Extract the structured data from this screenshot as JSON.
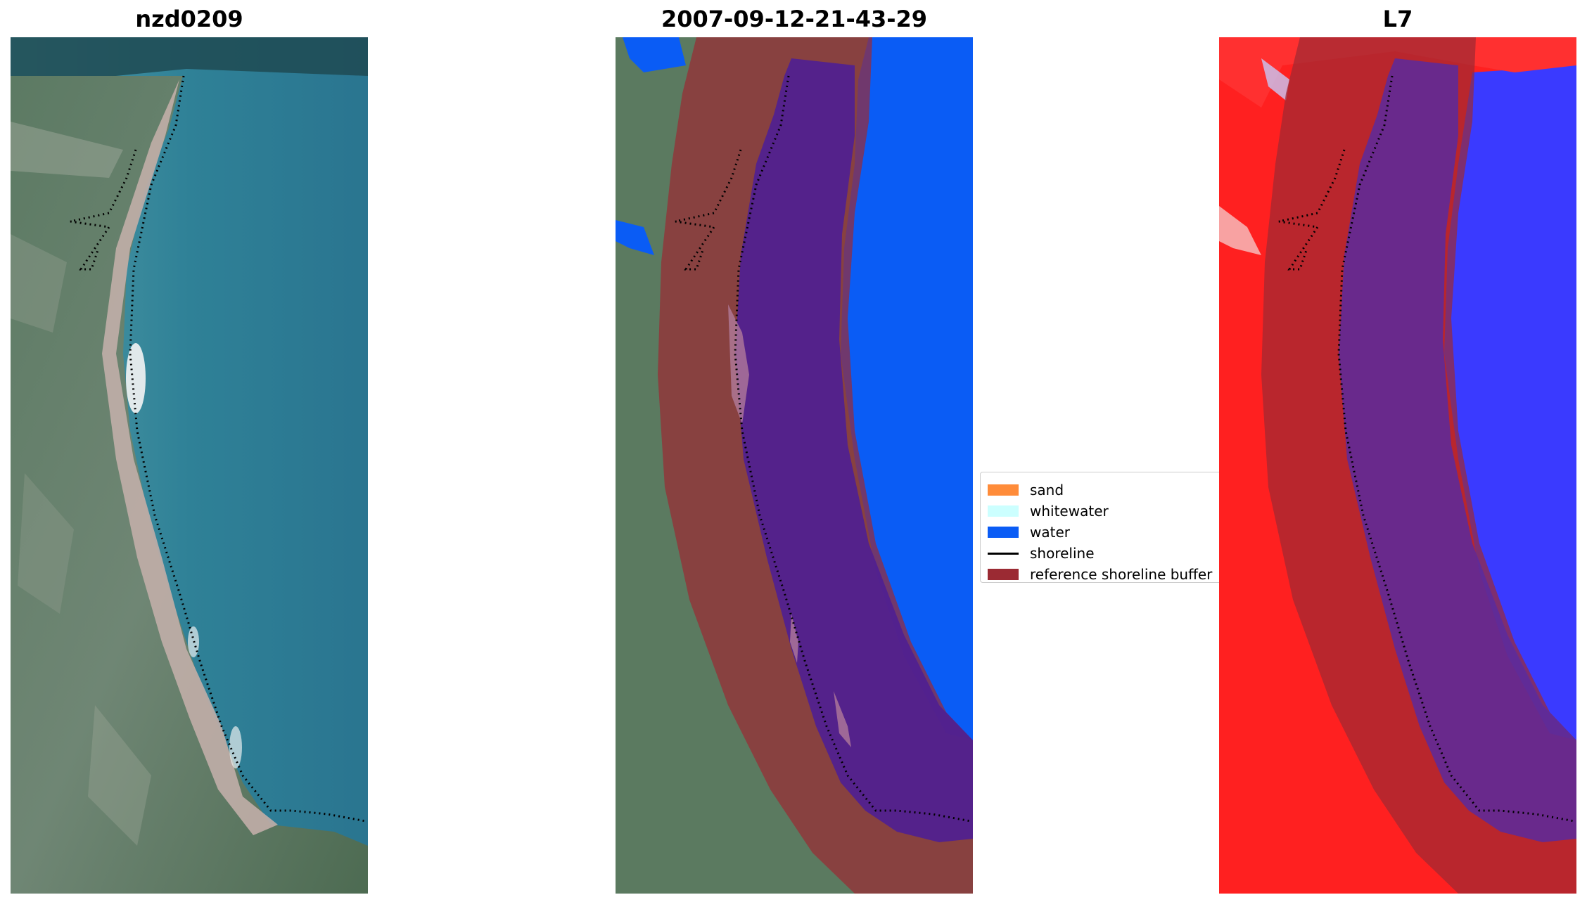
{
  "panels": {
    "left": {
      "title": "nzd0209"
    },
    "middle": {
      "title": "2007-09-12-21-43-29"
    },
    "right": {
      "title": "L7"
    }
  },
  "legend": {
    "items": [
      {
        "label": "sand",
        "color": "#ff8c3a",
        "kind": "patch"
      },
      {
        "label": "whitewater",
        "color": "#ccffff",
        "kind": "patch"
      },
      {
        "label": "water",
        "color": "#0a5cf5",
        "kind": "patch"
      },
      {
        "label": "shoreline",
        "color": "#000000",
        "kind": "line"
      },
      {
        "label": "reference shoreline buffer",
        "color": "#9b2a33",
        "kind": "patch"
      }
    ]
  },
  "colors": {
    "sea": "#2f7e94",
    "land": "#4d7358",
    "beach": "#b8a9a3",
    "water_class": "#0a5cf5",
    "buffer": "#9b2a33",
    "buffer_over_water": "#4f1f91",
    "index_land": "#ff2020",
    "index_water": "#3a3aff"
  }
}
